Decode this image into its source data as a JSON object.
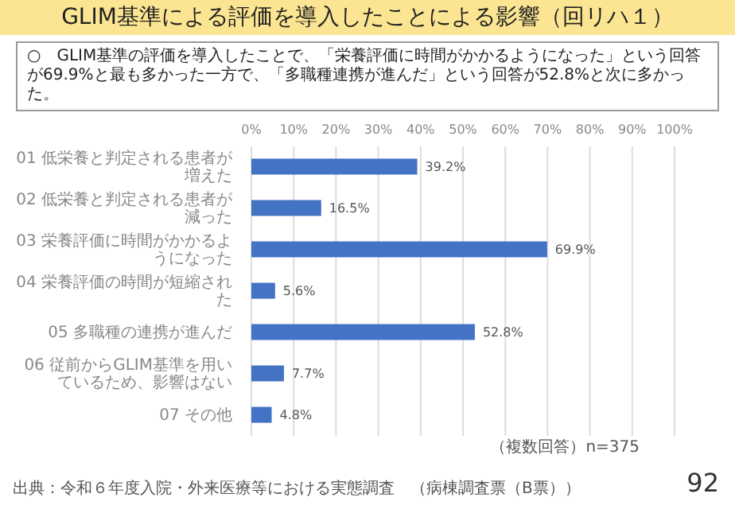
{
  "chart_data": {
    "type": "bar",
    "orientation": "horizontal",
    "title": "GLIM基準による評価を導入したことによる影響（回リハ１）",
    "subtitle": "○　GLIM基準の評価を導入したことで、「栄養評価に時間がかかるようになった」という回答が69.9%と最も多かった一方で、「多職種連携が進んだ」という回答が52.8%と次に多かった。",
    "categories": [
      "01 低栄養と判定される患者が増えた",
      "02 低栄養と判定される患者が減った",
      "03 栄養評価に時間がかかるようになった",
      "04 栄養評価の時間が短縮された",
      "05 多職種の連携が進んだ",
      "06 従前からGLIM基準を用いているため、影響はない",
      "07 その他"
    ],
    "values": [
      39.2,
      16.5,
      69.9,
      5.6,
      52.8,
      7.7,
      4.8
    ],
    "value_labels": [
      "39.2%",
      "16.5%",
      "69.9%",
      "5.6%",
      "52.8%",
      "7.7%",
      "4.8%"
    ],
    "color": "#4472c4",
    "xlim": [
      0,
      100
    ],
    "xticks": [
      {
        "value": 0,
        "label": "0%"
      },
      {
        "value": 10,
        "label": "10%"
      },
      {
        "value": 20,
        "label": "20%"
      },
      {
        "value": 30,
        "label": "30%"
      },
      {
        "value": 40,
        "label": "40%"
      },
      {
        "value": 50,
        "label": "50%"
      },
      {
        "value": 60,
        "label": "60%"
      },
      {
        "value": 70,
        "label": "70%"
      },
      {
        "value": 80,
        "label": "80%"
      },
      {
        "value": 90,
        "label": "90%"
      },
      {
        "value": 100,
        "label": "100%"
      }
    ],
    "grid": "x",
    "legend": false,
    "annotations": [
      "（複数回答）n=375",
      "出典：令和６年度入院・外来医療等における実態調査　（病棟調査票（B票））",
      "92"
    ]
  }
}
